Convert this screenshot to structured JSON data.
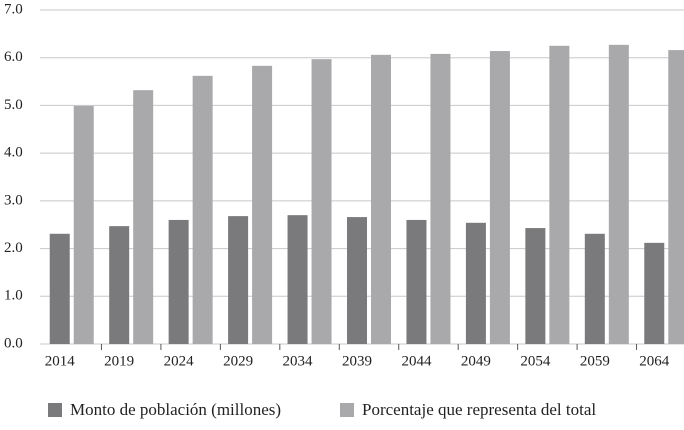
{
  "chart_data": {
    "type": "bar",
    "categories": [
      "2014",
      "2019",
      "2024",
      "2029",
      "2034",
      "2039",
      "2044",
      "2049",
      "2054",
      "2059",
      "2064"
    ],
    "series": [
      {
        "name": "Monto de población (millones)",
        "color": "#7a7a7c",
        "values": [
          2.31,
          2.47,
          2.6,
          2.68,
          2.7,
          2.66,
          2.6,
          2.54,
          2.43,
          2.31,
          2.12
        ]
      },
      {
        "name": "Porcentaje que representa del total",
        "color": "#a9a9ab",
        "values": [
          4.99,
          5.32,
          5.62,
          5.83,
          5.97,
          6.06,
          6.08,
          6.14,
          6.25,
          6.27,
          6.16
        ]
      }
    ],
    "ylim": [
      0,
      7
    ],
    "yticks": [
      {
        "value": 0,
        "label": "0.0"
      },
      {
        "value": 1,
        "label": "1.0"
      },
      {
        "value": 2,
        "label": "2.0"
      },
      {
        "value": 3,
        "label": "3.0"
      },
      {
        "value": 4,
        "label": "4.0"
      },
      {
        "value": 5,
        "label": "5.0"
      },
      {
        "value": 6,
        "label": "6.0"
      },
      {
        "value": 7,
        "label": "7.0"
      }
    ],
    "grid": true
  }
}
